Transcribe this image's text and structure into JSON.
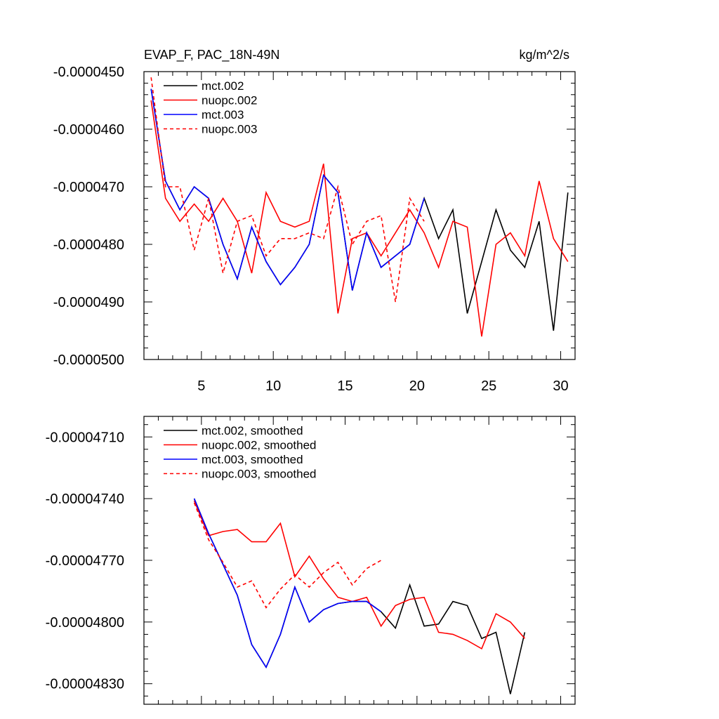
{
  "chart_data": [
    {
      "type": "line",
      "title": "EVAP_F, PAC_18N-49N",
      "units": "kg/m^2/s",
      "xlim": [
        1,
        31
      ],
      "ylim": [
        -5e-05,
        -4.5e-05
      ],
      "xticks": [
        5,
        10,
        15,
        20,
        25,
        30
      ],
      "xtick_labels": [
        "5",
        "10",
        "15",
        "20",
        "25",
        "30"
      ],
      "yticks": [
        -4.5e-05,
        -4.6e-05,
        -4.7e-05,
        -4.8e-05,
        -4.9e-05,
        -5e-05
      ],
      "ytick_labels": [
        "-0.0000450",
        "-0.0000460",
        "-0.0000470",
        "-0.0000480",
        "-0.0000490",
        "-0.0000500"
      ],
      "legend_position": "top-left",
      "series": [
        {
          "name": "mct.002",
          "color": "#000000",
          "dash": "solid",
          "x": [
            1.5,
            2.5,
            3.5,
            4.5,
            5.5,
            6.5,
            7.5,
            8.5,
            9.5,
            10.5,
            11.5,
            12.5,
            13.5,
            14.5,
            15.5,
            16.5,
            17.5,
            18.5,
            19.5,
            20.5,
            21.5,
            22.5,
            23.5,
            24.5,
            25.5,
            26.5,
            27.5,
            28.5,
            29.5,
            30.5
          ],
          "values": [
            -4.53e-05,
            -4.69e-05,
            -4.74e-05,
            -4.7e-05,
            -4.72e-05,
            -4.8e-05,
            -4.86e-05,
            -4.77e-05,
            -4.83e-05,
            -4.87e-05,
            -4.84e-05,
            -4.8e-05,
            -4.68e-05,
            -4.71e-05,
            -4.88e-05,
            -4.78e-05,
            -4.84e-05,
            -4.82e-05,
            -4.8e-05,
            -4.72e-05,
            -4.79e-05,
            -4.74e-05,
            -4.92e-05,
            -4.83e-05,
            -4.74e-05,
            -4.81e-05,
            -4.84e-05,
            -4.76e-05,
            -4.95e-05,
            -4.71e-05
          ]
        },
        {
          "name": "nuopc.002",
          "color": "#ff0000",
          "dash": "solid",
          "x": [
            1.5,
            2.5,
            3.5,
            4.5,
            5.5,
            6.5,
            7.5,
            8.5,
            9.5,
            10.5,
            11.5,
            12.5,
            13.5,
            14.5,
            15.5,
            16.5,
            17.5,
            18.5,
            19.5,
            20.5,
            21.5,
            22.5,
            23.5,
            24.5,
            25.5,
            26.5,
            27.5,
            28.5,
            29.5,
            30.5
          ],
          "values": [
            -4.55e-05,
            -4.72e-05,
            -4.76e-05,
            -4.73e-05,
            -4.76e-05,
            -4.72e-05,
            -4.76e-05,
            -4.85e-05,
            -4.71e-05,
            -4.76e-05,
            -4.77e-05,
            -4.76e-05,
            -4.66e-05,
            -4.92e-05,
            -4.79e-05,
            -4.78e-05,
            -4.82e-05,
            -4.78e-05,
            -4.74e-05,
            -4.78e-05,
            -4.84e-05,
            -4.76e-05,
            -4.77e-05,
            -4.96e-05,
            -4.8e-05,
            -4.78e-05,
            -4.82e-05,
            -4.69e-05,
            -4.79e-05,
            -4.83e-05
          ]
        },
        {
          "name": "mct.003",
          "color": "#0000ff",
          "dash": "solid",
          "x": [
            1.5,
            2.5,
            3.5,
            4.5,
            5.5,
            6.5,
            7.5,
            8.5,
            9.5,
            10.5,
            11.5,
            12.5,
            13.5,
            14.5,
            15.5,
            16.5,
            17.5,
            18.5,
            19.5,
            20.5
          ],
          "values": [
            -4.53e-05,
            -4.69e-05,
            -4.74e-05,
            -4.7e-05,
            -4.72e-05,
            -4.8e-05,
            -4.86e-05,
            -4.77e-05,
            -4.83e-05,
            -4.87e-05,
            -4.84e-05,
            -4.8e-05,
            -4.68e-05,
            -4.71e-05,
            -4.88e-05,
            -4.78e-05,
            -4.84e-05,
            -4.82e-05,
            -4.8e-05,
            -4.72e-05
          ]
        },
        {
          "name": "nuopc.003",
          "color": "#ff0000",
          "dash": "dashed",
          "x": [
            1.5,
            2.5,
            3.5,
            4.5,
            5.5,
            6.5,
            7.5,
            8.5,
            9.5,
            10.5,
            11.5,
            12.5,
            13.5,
            14.5,
            15.5,
            16.5,
            17.5,
            18.5,
            19.5,
            20.5
          ],
          "values": [
            -4.51e-05,
            -4.7e-05,
            -4.7e-05,
            -4.81e-05,
            -4.72e-05,
            -4.85e-05,
            -4.76e-05,
            -4.75e-05,
            -4.82e-05,
            -4.79e-05,
            -4.79e-05,
            -4.78e-05,
            -4.79e-05,
            -4.7e-05,
            -4.8e-05,
            -4.76e-05,
            -4.75e-05,
            -4.9e-05,
            -4.72e-05,
            -4.76e-05
          ]
        }
      ]
    },
    {
      "type": "line",
      "title": "",
      "xlim": [
        1,
        31
      ],
      "ylim": [
        -4.84e-05,
        -4.7e-05
      ],
      "xticks": [
        5,
        10,
        15,
        20,
        25,
        30
      ],
      "xtick_labels": [],
      "yticks": [
        -4.71e-05,
        -4.74e-05,
        -4.77e-05,
        -4.8e-05,
        -4.83e-05
      ],
      "ytick_labels": [
        "-0.00004710",
        "-0.00004740",
        "-0.00004770",
        "-0.00004800",
        "-0.00004830"
      ],
      "legend_position": "top-left",
      "series": [
        {
          "name": "mct.002, smoothed",
          "color": "#000000",
          "dash": "solid",
          "x": [
            4.5,
            5.5,
            6.5,
            7.5,
            8.5,
            9.5,
            10.5,
            11.5,
            12.5,
            13.5,
            14.5,
            15.5,
            16.5,
            17.5,
            18.5,
            19.5,
            20.5,
            21.5,
            22.5,
            23.5,
            24.5,
            25.5,
            26.5,
            27.5
          ],
          "values": [
            -4.74e-05,
            -4.757e-05,
            -4.772e-05,
            -4.787e-05,
            -4.811e-05,
            -4.822e-05,
            -4.806e-05,
            -4.783e-05,
            -4.8e-05,
            -4.794e-05,
            -4.791e-05,
            -4.79e-05,
            -4.79e-05,
            -4.795e-05,
            -4.803e-05,
            -4.782e-05,
            -4.802e-05,
            -4.801e-05,
            -4.79e-05,
            -4.792e-05,
            -4.808e-05,
            -4.805e-05,
            -4.835e-05,
            -4.805e-05
          ]
        },
        {
          "name": "nuopc.002, smoothed",
          "color": "#ff0000",
          "dash": "solid",
          "x": [
            4.5,
            5.5,
            6.5,
            7.5,
            8.5,
            9.5,
            10.5,
            11.5,
            12.5,
            13.5,
            14.5,
            15.5,
            16.5,
            17.5,
            18.5,
            19.5,
            20.5,
            21.5,
            22.5,
            23.5,
            24.5,
            25.5,
            26.5,
            27.5
          ],
          "values": [
            -4.741e-05,
            -4.758e-05,
            -4.756e-05,
            -4.755e-05,
            -4.761e-05,
            -4.761e-05,
            -4.752e-05,
            -4.778e-05,
            -4.768e-05,
            -4.779e-05,
            -4.788e-05,
            -4.79e-05,
            -4.788e-05,
            -4.802e-05,
            -4.792e-05,
            -4.789e-05,
            -4.788e-05,
            -4.805e-05,
            -4.806e-05,
            -4.809e-05,
            -4.813e-05,
            -4.796e-05,
            -4.8e-05,
            -4.808e-05
          ]
        },
        {
          "name": "mct.003, smoothed",
          "color": "#0000ff",
          "dash": "solid",
          "x": [
            4.5,
            5.5,
            6.5,
            7.5,
            8.5,
            9.5,
            10.5,
            11.5,
            12.5,
            13.5,
            14.5,
            15.5,
            16.5,
            17.5
          ],
          "values": [
            -4.74e-05,
            -4.757e-05,
            -4.772e-05,
            -4.787e-05,
            -4.811e-05,
            -4.822e-05,
            -4.806e-05,
            -4.783e-05,
            -4.8e-05,
            -4.794e-05,
            -4.791e-05,
            -4.79e-05,
            -4.79e-05,
            -4.795e-05
          ]
        },
        {
          "name": "nuopc.003, smoothed",
          "color": "#ff0000",
          "dash": "dashed",
          "x": [
            4.5,
            5.5,
            6.5,
            7.5,
            8.5,
            9.5,
            10.5,
            11.5,
            12.5,
            13.5,
            14.5,
            15.5,
            16.5,
            17.5
          ],
          "values": [
            -4.742e-05,
            -4.76e-05,
            -4.771e-05,
            -4.783e-05,
            -4.78e-05,
            -4.793e-05,
            -4.784e-05,
            -4.777e-05,
            -4.783e-05,
            -4.776e-05,
            -4.771e-05,
            -4.782e-05,
            -4.774e-05,
            -4.77e-05
          ]
        }
      ]
    }
  ]
}
